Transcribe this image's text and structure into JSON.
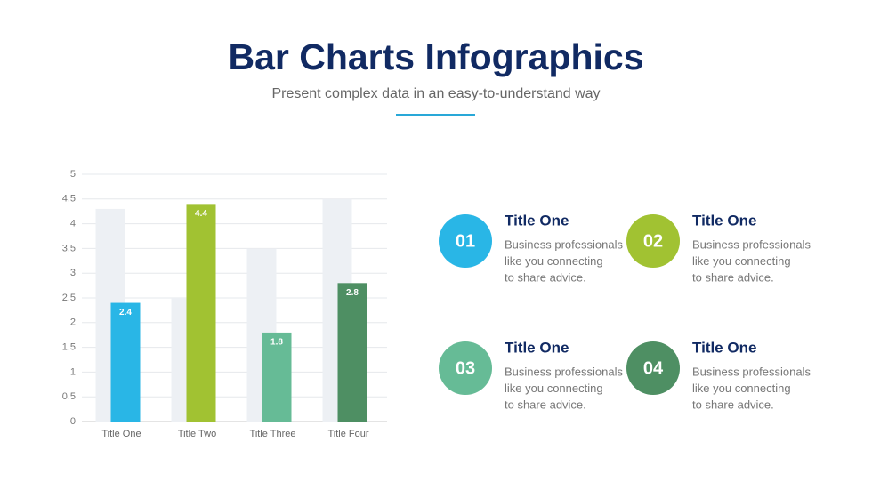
{
  "header": {
    "title": "Bar Charts Infographics",
    "subtitle": "Present complex data in an easy-to-understand way"
  },
  "chart_data": {
    "type": "bar",
    "categories": [
      "Title One",
      "Title Two",
      "Title Three",
      "Title Four"
    ],
    "series": [
      {
        "color": "#edf0f4",
        "values": [
          4.3,
          2.5,
          3.5,
          4.5
        ]
      },
      {
        "colors": [
          "#29b6e6",
          "#a1c232",
          "#66bb96",
          "#4e8f63"
        ],
        "values": [
          2.4,
          4.4,
          1.8,
          2.8
        ]
      }
    ],
    "ylim": [
      0,
      5
    ],
    "yticks": [
      0,
      0.5,
      1,
      1.5,
      2,
      2.5,
      3,
      3.5,
      4,
      4.5,
      5
    ],
    "grid": true
  },
  "items": [
    {
      "number": "01",
      "color": "#29b6e6",
      "title": "Title One",
      "lines": [
        "Business professionals",
        "like you connecting",
        "to share advice."
      ]
    },
    {
      "number": "02",
      "color": "#a1c232",
      "title": "Title One",
      "lines": [
        "Business professionals",
        "like you connecting",
        "to share advice."
      ]
    },
    {
      "number": "03",
      "color": "#66bb96",
      "title": "Title One",
      "lines": [
        "Business professionals",
        "like you connecting",
        "to share advice."
      ]
    },
    {
      "number": "04",
      "color": "#4e8f63",
      "title": "Title One",
      "lines": [
        "Business professionals",
        "like you connecting",
        "to share advice."
      ]
    }
  ]
}
